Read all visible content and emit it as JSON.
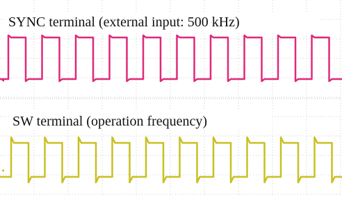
{
  "labels": {
    "sync": "SYNC terminal (external input: 500 kHz)",
    "sw": "SW terminal (operation frequency)"
  }
}
